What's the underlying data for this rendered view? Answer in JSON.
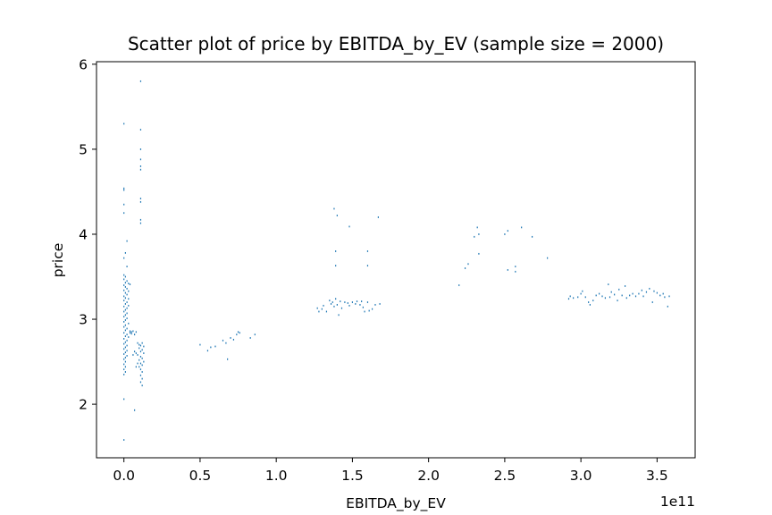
{
  "chart_data": {
    "type": "scatter",
    "title": "Scatter plot of price by EBITDA_by_EV (sample size = 2000)",
    "xlabel": "EBITDA_by_EV",
    "ylabel": "price",
    "x_offset_label": "1e11",
    "x_scale": 100000000000.0,
    "xlim": [
      -0.18,
      3.75
    ],
    "ylim": [
      1.37,
      6.03
    ],
    "xticks": [
      0.0,
      0.5,
      1.0,
      1.5,
      2.0,
      2.5,
      3.0,
      3.5
    ],
    "xtick_labels": [
      "0.0",
      "0.5",
      "1.0",
      "1.5",
      "2.0",
      "2.5",
      "3.0",
      "3.5"
    ],
    "yticks": [
      2,
      3,
      4,
      5,
      6
    ],
    "ytick_labels": [
      "2",
      "3",
      "4",
      "5",
      "6"
    ],
    "grid": false,
    "marker_color": "#1f77b4",
    "series": [
      {
        "x_units": "1e11",
        "points": [
          [
            0.0,
            1.58
          ],
          [
            0.0,
            2.06
          ],
          [
            0.07,
            1.93
          ],
          [
            0.0,
            5.3
          ],
          [
            0.0,
            4.54
          ],
          [
            0.0,
            4.52
          ],
          [
            0.0,
            4.35
          ],
          [
            0.0,
            4.25
          ],
          [
            0.02,
            3.92
          ],
          [
            0.01,
            3.78
          ],
          [
            0.0,
            3.72
          ],
          [
            0.02,
            3.62
          ],
          [
            0.11,
            5.8
          ],
          [
            0.11,
            5.23
          ],
          [
            0.11,
            5.0
          ],
          [
            0.11,
            4.88
          ],
          [
            0.11,
            4.8
          ],
          [
            0.11,
            4.76
          ],
          [
            0.11,
            4.42
          ],
          [
            0.11,
            4.38
          ],
          [
            0.11,
            4.17
          ],
          [
            0.11,
            4.13
          ],
          [
            0.0,
            3.52
          ],
          [
            0.01,
            3.5
          ],
          [
            0.0,
            3.47
          ],
          [
            0.02,
            3.45
          ],
          [
            0.01,
            3.43
          ],
          [
            0.03,
            3.42
          ],
          [
            0.0,
            3.4
          ],
          [
            0.04,
            3.41
          ],
          [
            0.01,
            3.38
          ],
          [
            0.02,
            3.36
          ],
          [
            0.0,
            3.34
          ],
          [
            0.03,
            3.33
          ],
          [
            0.01,
            3.31
          ],
          [
            0.02,
            3.29
          ],
          [
            0.0,
            3.27
          ],
          [
            0.01,
            3.25
          ],
          [
            0.03,
            3.24
          ],
          [
            0.0,
            3.22
          ],
          [
            0.02,
            3.2
          ],
          [
            0.01,
            3.18
          ],
          [
            0.03,
            3.16
          ],
          [
            0.0,
            3.15
          ],
          [
            0.02,
            3.13
          ],
          [
            0.01,
            3.11
          ],
          [
            0.0,
            3.09
          ],
          [
            0.02,
            3.07
          ],
          [
            0.01,
            3.05
          ],
          [
            0.0,
            3.03
          ],
          [
            0.02,
            3.01
          ],
          [
            0.01,
            2.99
          ],
          [
            0.0,
            2.97
          ],
          [
            0.03,
            2.95
          ],
          [
            0.01,
            2.93
          ],
          [
            0.0,
            2.91
          ],
          [
            0.02,
            2.89
          ],
          [
            0.01,
            2.87
          ],
          [
            0.04,
            2.86
          ],
          [
            0.05,
            2.85
          ],
          [
            0.06,
            2.86
          ],
          [
            0.0,
            2.84
          ],
          [
            0.02,
            2.82
          ],
          [
            0.01,
            2.8
          ],
          [
            0.03,
            2.79
          ],
          [
            0.0,
            2.77
          ],
          [
            0.02,
            2.75
          ],
          [
            0.01,
            2.73
          ],
          [
            0.0,
            2.71
          ],
          [
            0.02,
            2.69
          ],
          [
            0.01,
            2.67
          ],
          [
            0.0,
            2.65
          ],
          [
            0.02,
            2.63
          ],
          [
            0.01,
            2.61
          ],
          [
            0.0,
            2.59
          ],
          [
            0.02,
            2.57
          ],
          [
            0.01,
            2.55
          ],
          [
            0.0,
            2.53
          ],
          [
            0.01,
            2.5
          ],
          [
            0.0,
            2.47
          ],
          [
            0.01,
            2.44
          ],
          [
            0.0,
            2.41
          ],
          [
            0.01,
            2.38
          ],
          [
            0.0,
            2.35
          ],
          [
            0.04,
            2.84
          ],
          [
            0.05,
            2.83
          ],
          [
            0.07,
            2.82
          ],
          [
            0.08,
            2.85
          ],
          [
            0.09,
            2.72
          ],
          [
            0.1,
            2.7
          ],
          [
            0.11,
            2.69
          ],
          [
            0.12,
            2.72
          ],
          [
            0.13,
            2.68
          ],
          [
            0.1,
            2.66
          ],
          [
            0.12,
            2.64
          ],
          [
            0.11,
            2.62
          ],
          [
            0.13,
            2.6
          ],
          [
            0.09,
            2.58
          ],
          [
            0.11,
            2.56
          ],
          [
            0.12,
            2.54
          ],
          [
            0.1,
            2.52
          ],
          [
            0.13,
            2.5
          ],
          [
            0.11,
            2.48
          ],
          [
            0.12,
            2.46
          ],
          [
            0.1,
            2.44
          ],
          [
            0.11,
            2.41
          ],
          [
            0.12,
            2.38
          ],
          [
            0.11,
            2.34
          ],
          [
            0.12,
            2.3
          ],
          [
            0.11,
            2.26
          ],
          [
            0.12,
            2.22
          ],
          [
            0.08,
            2.6
          ],
          [
            0.07,
            2.62
          ],
          [
            0.06,
            2.58
          ],
          [
            0.09,
            2.48
          ],
          [
            0.08,
            2.44
          ],
          [
            0.5,
            2.7
          ],
          [
            0.55,
            2.63
          ],
          [
            0.57,
            2.67
          ],
          [
            0.6,
            2.68
          ],
          [
            0.65,
            2.75
          ],
          [
            0.67,
            2.72
          ],
          [
            0.68,
            2.53
          ],
          [
            0.7,
            2.78
          ],
          [
            0.72,
            2.76
          ],
          [
            0.74,
            2.82
          ],
          [
            0.75,
            2.85
          ],
          [
            0.76,
            2.84
          ],
          [
            0.83,
            2.78
          ],
          [
            0.86,
            2.82
          ],
          [
            1.27,
            3.13
          ],
          [
            1.28,
            3.09
          ],
          [
            1.3,
            3.12
          ],
          [
            1.31,
            3.16
          ],
          [
            1.33,
            3.09
          ],
          [
            1.35,
            3.22
          ],
          [
            1.36,
            3.18
          ],
          [
            1.37,
            3.2
          ],
          [
            1.38,
            3.15
          ],
          [
            1.39,
            3.24
          ],
          [
            1.4,
            3.17
          ],
          [
            1.41,
            3.05
          ],
          [
            1.42,
            3.21
          ],
          [
            1.43,
            3.13
          ],
          [
            1.45,
            3.2
          ],
          [
            1.47,
            3.19
          ],
          [
            1.48,
            3.16
          ],
          [
            1.5,
            3.2
          ],
          [
            1.52,
            3.18
          ],
          [
            1.53,
            3.21
          ],
          [
            1.55,
            3.17
          ],
          [
            1.56,
            3.21
          ],
          [
            1.57,
            3.14
          ],
          [
            1.58,
            3.09
          ],
          [
            1.6,
            3.2
          ],
          [
            1.61,
            3.1
          ],
          [
            1.63,
            3.12
          ],
          [
            1.65,
            3.17
          ],
          [
            1.68,
            3.18
          ],
          [
            1.38,
            4.3
          ],
          [
            1.4,
            4.22
          ],
          [
            1.48,
            4.09
          ],
          [
            1.67,
            4.2
          ],
          [
            1.39,
            3.8
          ],
          [
            1.6,
            3.8
          ],
          [
            1.39,
            3.63
          ],
          [
            1.6,
            3.63
          ],
          [
            2.2,
            3.4
          ],
          [
            2.24,
            3.6
          ],
          [
            2.26,
            3.65
          ],
          [
            2.3,
            3.97
          ],
          [
            2.32,
            4.08
          ],
          [
            2.33,
            3.77
          ],
          [
            2.33,
            4.0
          ],
          [
            2.5,
            4.0
          ],
          [
            2.52,
            4.04
          ],
          [
            2.52,
            3.58
          ],
          [
            2.57,
            3.56
          ],
          [
            2.57,
            3.62
          ],
          [
            2.61,
            4.08
          ],
          [
            2.68,
            3.97
          ],
          [
            2.78,
            3.72
          ],
          [
            2.92,
            3.24
          ],
          [
            2.93,
            3.27
          ],
          [
            2.95,
            3.25
          ],
          [
            2.98,
            3.26
          ],
          [
            3.0,
            3.3
          ],
          [
            3.01,
            3.33
          ],
          [
            3.03,
            3.26
          ],
          [
            3.05,
            3.2
          ],
          [
            3.06,
            3.17
          ],
          [
            3.08,
            3.22
          ],
          [
            3.1,
            3.28
          ],
          [
            3.12,
            3.3
          ],
          [
            3.14,
            3.27
          ],
          [
            3.16,
            3.25
          ],
          [
            3.18,
            3.41
          ],
          [
            3.19,
            3.26
          ],
          [
            3.2,
            3.32
          ],
          [
            3.22,
            3.29
          ],
          [
            3.24,
            3.22
          ],
          [
            3.25,
            3.35
          ],
          [
            3.27,
            3.28
          ],
          [
            3.29,
            3.39
          ],
          [
            3.3,
            3.25
          ],
          [
            3.32,
            3.28
          ],
          [
            3.34,
            3.3
          ],
          [
            3.36,
            3.27
          ],
          [
            3.38,
            3.3
          ],
          [
            3.4,
            3.34
          ],
          [
            3.41,
            3.27
          ],
          [
            3.43,
            3.32
          ],
          [
            3.45,
            3.36
          ],
          [
            3.47,
            3.2
          ],
          [
            3.48,
            3.33
          ],
          [
            3.5,
            3.31
          ],
          [
            3.52,
            3.28
          ],
          [
            3.54,
            3.3
          ],
          [
            3.55,
            3.26
          ],
          [
            3.57,
            3.15
          ],
          [
            3.58,
            3.27
          ]
        ]
      }
    ]
  }
}
